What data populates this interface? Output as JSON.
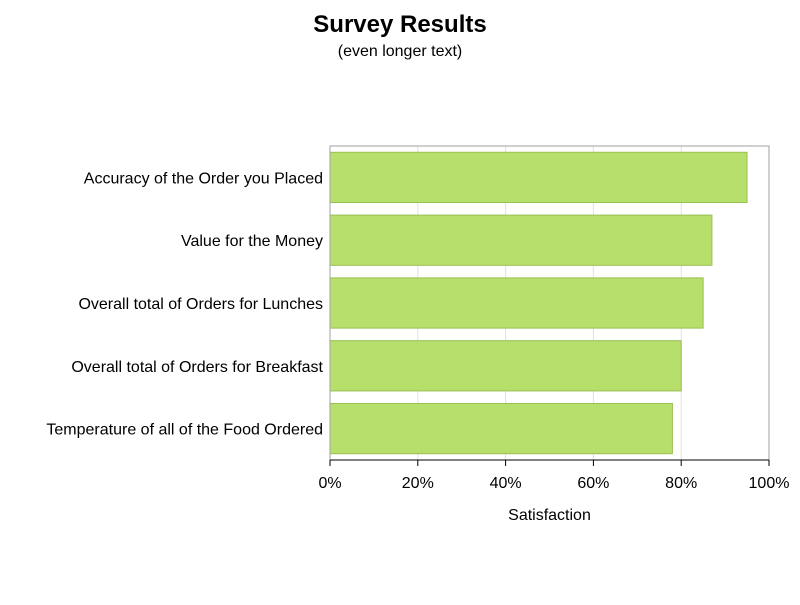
{
  "chart_data": {
    "type": "bar",
    "orientation": "horizontal",
    "title": "Survey Results",
    "subtitle": "(even longer text)",
    "xlabel": "Satisfaction",
    "ylabel": "",
    "categories": [
      "Accuracy of the Order you Placed",
      "Value for the Money",
      "Overall total of Orders for Lunches",
      "Overall total of Orders for Breakfast",
      "Temperature of all of the Food Ordered"
    ],
    "values": [
      0.95,
      0.87,
      0.85,
      0.8,
      0.78
    ],
    "xlim": [
      0,
      1
    ],
    "xticks": [
      0,
      0.2,
      0.4,
      0.6,
      0.8,
      1.0
    ],
    "xtick_labels": [
      "0%",
      "20%",
      "40%",
      "60%",
      "80%",
      "100%"
    ],
    "grid": true,
    "legend": "none",
    "colors": {
      "bar_fill": "#b6df6b",
      "bar_stroke": "#9bbf55",
      "grid": "#e0e0e0",
      "frame": "#a0a0a0",
      "text": "#000000"
    }
  }
}
